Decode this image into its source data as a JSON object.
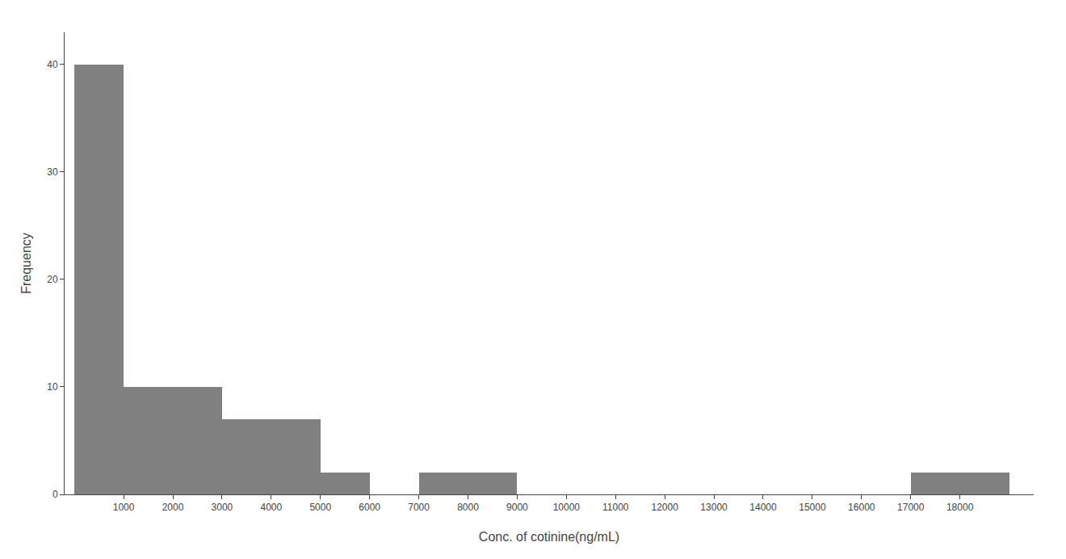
{
  "chart_data": {
    "type": "histogram",
    "bins": [
      0,
      1000,
      2000,
      3000,
      4000,
      5000,
      6000,
      7000,
      8000,
      9000,
      10000,
      11000,
      12000,
      13000,
      14000,
      15000,
      16000,
      17000,
      18000,
      19000
    ],
    "values": [
      40,
      10,
      10,
      7,
      7,
      2,
      0,
      2,
      2,
      0,
      0,
      0,
      0,
      0,
      0,
      0,
      0,
      2,
      2
    ],
    "color": "#808080",
    "xlabel": "Conc. of cotinine(ng/mL)",
    "ylabel": "Frequency",
    "xlim": [
      -200,
      19500
    ],
    "ylim": [
      0,
      43
    ],
    "xticks": [
      1000,
      2000,
      3000,
      4000,
      5000,
      6000,
      7000,
      8000,
      9000,
      10000,
      11000,
      12000,
      13000,
      14000,
      15000,
      16000,
      17000,
      18000
    ],
    "yticks": [
      0,
      10,
      20,
      30,
      40
    ],
    "grid": false
  }
}
